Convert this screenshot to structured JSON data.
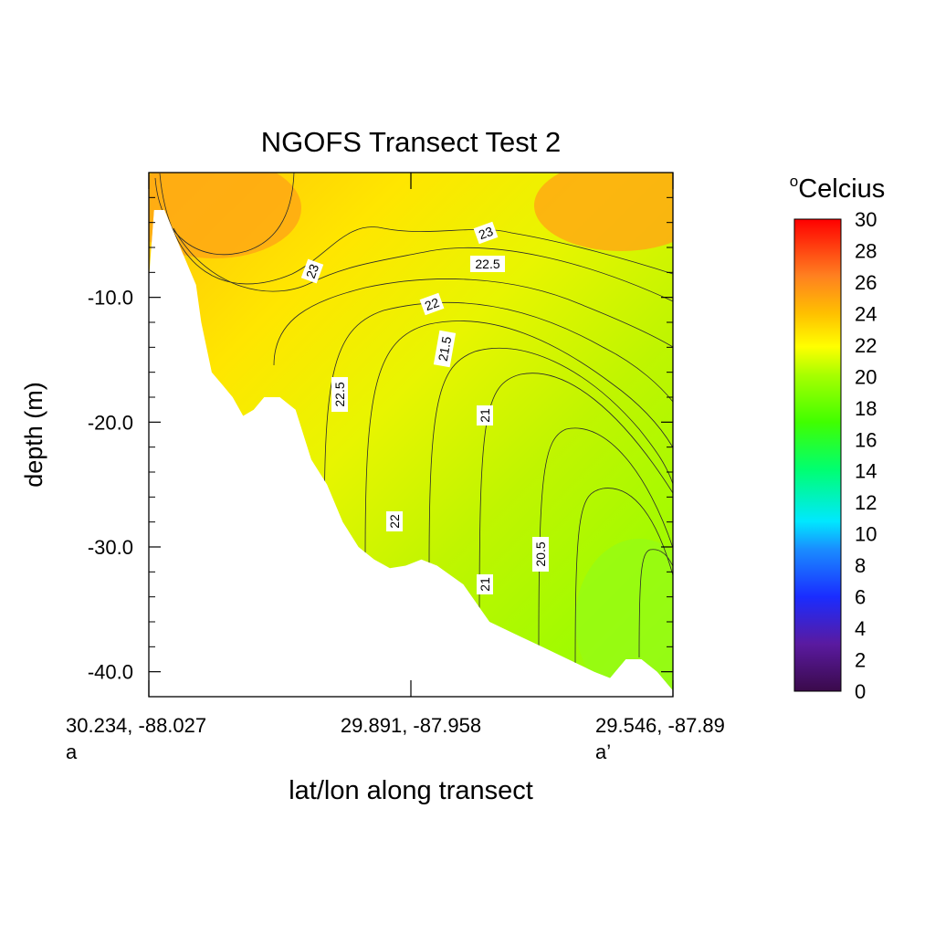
{
  "chart_data": {
    "type": "heatmap",
    "title": "NGOFS Transect Test 2",
    "xlabel": "lat/lon along transect",
    "ylabel": "depth (m)",
    "colorbar_title_sup": "o",
    "colorbar_title": "Celcius",
    "ylim": [
      -42,
      0
    ],
    "y_ticks": [
      {
        "value": -10,
        "label": "-10.0"
      },
      {
        "value": -20,
        "label": "-20.0"
      },
      {
        "value": -30,
        "label": "-30.0"
      },
      {
        "value": -40,
        "label": "-40.0"
      }
    ],
    "x_ticks": [
      {
        "pos": 0.0,
        "label": "30.234, -88.027",
        "sublabel": "a"
      },
      {
        "pos": 0.5,
        "label": "29.891, -87.958",
        "sublabel": ""
      },
      {
        "pos": 1.0,
        "label": "29.546, -87.89",
        "sublabel": "a’"
      }
    ],
    "colorbar": {
      "min": 0,
      "max": 30,
      "tick_labels": [
        "0",
        "2",
        "4",
        "6",
        "8",
        "10",
        "12",
        "14",
        "16",
        "18",
        "20",
        "22",
        "24",
        "26",
        "28",
        "30"
      ]
    },
    "contour_labels": [
      "23",
      "23",
      "22.5",
      "22.5",
      "22",
      "22",
      "21.5",
      "21",
      "21",
      "20.5"
    ],
    "bottom_profile_depth_m": [
      [
        0.0,
        -8.6
      ],
      [
        0.01,
        -3
      ],
      [
        0.03,
        -3
      ],
      [
        0.06,
        -6
      ],
      [
        0.09,
        -9
      ],
      [
        0.1,
        -12
      ],
      [
        0.12,
        -16
      ],
      [
        0.14,
        -17
      ],
      [
        0.16,
        -18
      ],
      [
        0.18,
        -19.5
      ],
      [
        0.2,
        -19
      ],
      [
        0.22,
        -18
      ],
      [
        0.25,
        -18
      ],
      [
        0.28,
        -19
      ],
      [
        0.31,
        -23
      ],
      [
        0.34,
        -25
      ],
      [
        0.37,
        -28
      ],
      [
        0.4,
        -30
      ],
      [
        0.43,
        -31
      ],
      [
        0.46,
        -31.7
      ],
      [
        0.49,
        -31.5
      ],
      [
        0.52,
        -31
      ],
      [
        0.55,
        -31.5
      ],
      [
        0.6,
        -33
      ],
      [
        0.65,
        -36
      ],
      [
        0.7,
        -37
      ],
      [
        0.75,
        -38
      ],
      [
        0.8,
        -39
      ],
      [
        0.85,
        -40
      ],
      [
        0.88,
        -40.5
      ],
      [
        0.91,
        -39
      ],
      [
        0.94,
        -39
      ],
      [
        0.97,
        -40
      ],
      [
        1.0,
        -41.5
      ]
    ],
    "temperature_field_C": {
      "surface_warm_max": 24.2,
      "deep_cool_min": 19.8,
      "note_range": [
        19.8,
        24.2
      ]
    }
  }
}
